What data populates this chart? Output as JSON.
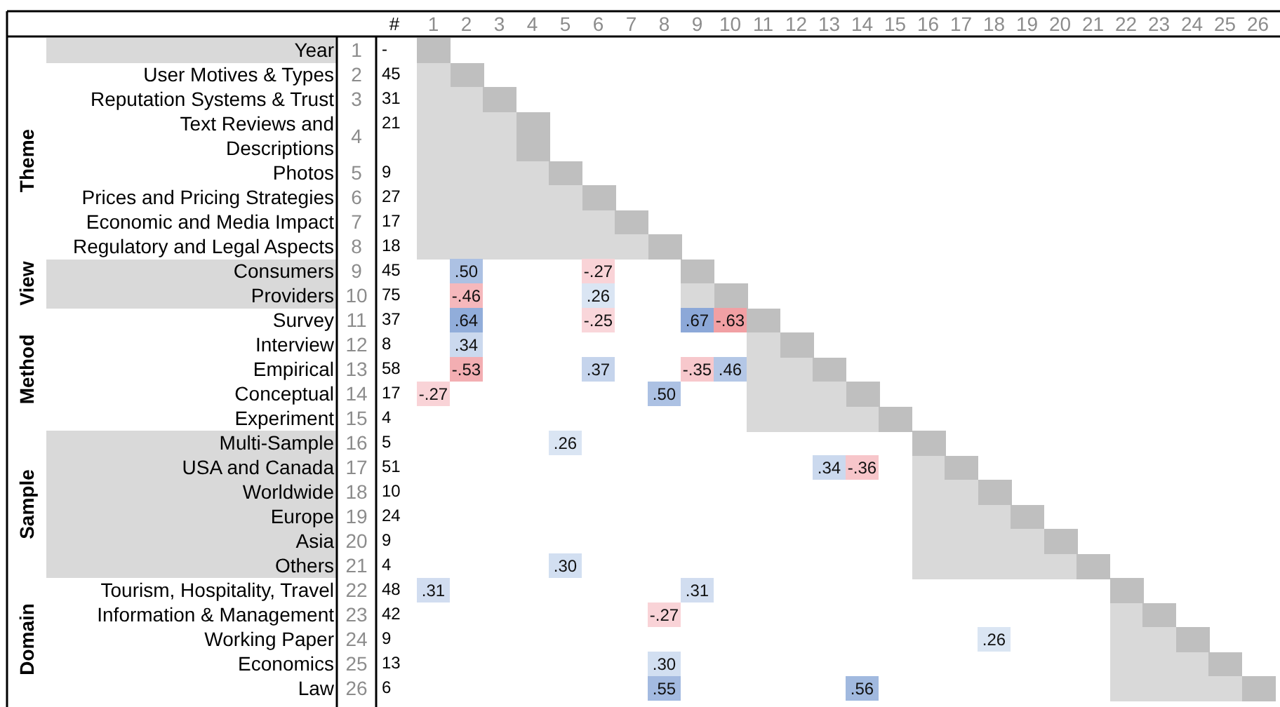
{
  "chart_data": {
    "type": "heatmap",
    "categories": [
      "1",
      "2",
      "3",
      "4",
      "5",
      "6",
      "7",
      "8",
      "9",
      "10",
      "11",
      "12",
      "13",
      "14",
      "15",
      "16",
      "17",
      "18",
      "19",
      "20",
      "21",
      "22",
      "23",
      "24",
      "25",
      "26"
    ],
    "y_categories": [
      "Year",
      "User Motives & Types",
      "Reputation Systems & Trust",
      "Text Reviews and Descriptions",
      "Photos",
      "Prices and Pricing Strategies",
      "Economic and Media Impact",
      "Regulatory and Legal Aspects",
      "Consumers",
      "Providers",
      "Survey",
      "Interview",
      "Empirical",
      "Conceptual",
      "Experiment",
      "Multi-Sample",
      "USA and Canada",
      "Worldwide",
      "Europe",
      "Asia",
      "Others",
      "Tourism, Hospitality, Travel",
      "Information & Management",
      "Working Paper",
      "Economics",
      "Law"
    ],
    "y2label": "#",
    "y2_categories": [
      "-",
      "45",
      "31",
      "21",
      "9",
      "27",
      "17",
      "18",
      "45",
      "75",
      "37",
      "8",
      "58",
      "17",
      "4",
      "5",
      "51",
      "10",
      "24",
      "9",
      "4",
      "48",
      "42",
      "9",
      "13",
      "6"
    ],
    "annotations": [
      "Theme",
      "View",
      "Method",
      "Sample",
      "Domain"
    ],
    "cells": [
      [
        null,
        null,
        null,
        null,
        null,
        null,
        null,
        null,
        null,
        null,
        null,
        null,
        null,
        null,
        null,
        null,
        null,
        null,
        null,
        null,
        null,
        null,
        null,
        null,
        null,
        null
      ],
      [
        null,
        null,
        null,
        null,
        null,
        null,
        null,
        null,
        null,
        null,
        null,
        null,
        null,
        null,
        null,
        null,
        null,
        null,
        null,
        null,
        null,
        null,
        null,
        null,
        null,
        null
      ],
      [
        null,
        null,
        null,
        null,
        null,
        null,
        null,
        null,
        null,
        null,
        null,
        null,
        null,
        null,
        null,
        null,
        null,
        null,
        null,
        null,
        null,
        null,
        null,
        null,
        null,
        null
      ],
      [
        null,
        null,
        null,
        null,
        null,
        null,
        null,
        null,
        null,
        null,
        null,
        null,
        null,
        null,
        null,
        null,
        null,
        null,
        null,
        null,
        null,
        null,
        null,
        null,
        null,
        null
      ],
      [
        null,
        null,
        null,
        null,
        null,
        null,
        null,
        null,
        null,
        null,
        null,
        null,
        null,
        null,
        null,
        null,
        null,
        null,
        null,
        null,
        null,
        null,
        null,
        null,
        null,
        null
      ],
      [
        null,
        null,
        null,
        null,
        null,
        null,
        null,
        null,
        null,
        null,
        null,
        null,
        null,
        null,
        null,
        null,
        null,
        null,
        null,
        null,
        null,
        null,
        null,
        null,
        null,
        null
      ],
      [
        null,
        null,
        null,
        null,
        null,
        null,
        null,
        null,
        null,
        null,
        null,
        null,
        null,
        null,
        null,
        null,
        null,
        null,
        null,
        null,
        null,
        null,
        null,
        null,
        null,
        null
      ],
      [
        null,
        null,
        null,
        null,
        null,
        null,
        null,
        null,
        null,
        null,
        null,
        null,
        null,
        null,
        null,
        null,
        null,
        null,
        null,
        null,
        null,
        null,
        null,
        null,
        null,
        null
      ],
      [
        null,
        0.5,
        null,
        null,
        null,
        -0.27,
        null,
        null,
        null,
        null,
        null,
        null,
        null,
        null,
        null,
        null,
        null,
        null,
        null,
        null,
        null,
        null,
        null,
        null,
        null,
        null
      ],
      [
        null,
        -0.46,
        null,
        null,
        null,
        0.26,
        null,
        null,
        null,
        null,
        null,
        null,
        null,
        null,
        null,
        null,
        null,
        null,
        null,
        null,
        null,
        null,
        null,
        null,
        null,
        null
      ],
      [
        null,
        0.64,
        null,
        null,
        null,
        -0.25,
        null,
        null,
        0.67,
        -0.63,
        null,
        null,
        null,
        null,
        null,
        null,
        null,
        null,
        null,
        null,
        null,
        null,
        null,
        null,
        null,
        null
      ],
      [
        null,
        0.34,
        null,
        null,
        null,
        null,
        null,
        null,
        null,
        null,
        null,
        null,
        null,
        null,
        null,
        null,
        null,
        null,
        null,
        null,
        null,
        null,
        null,
        null,
        null,
        null
      ],
      [
        null,
        -0.53,
        null,
        null,
        null,
        0.37,
        null,
        null,
        -0.35,
        0.46,
        null,
        null,
        null,
        null,
        null,
        null,
        null,
        null,
        null,
        null,
        null,
        null,
        null,
        null,
        null,
        null
      ],
      [
        -0.27,
        null,
        null,
        null,
        null,
        null,
        null,
        0.5,
        null,
        null,
        null,
        null,
        null,
        null,
        null,
        null,
        null,
        null,
        null,
        null,
        null,
        null,
        null,
        null,
        null,
        null
      ],
      [
        null,
        null,
        null,
        null,
        null,
        null,
        null,
        null,
        null,
        null,
        null,
        null,
        null,
        null,
        null,
        null,
        null,
        null,
        null,
        null,
        null,
        null,
        null,
        null,
        null,
        null
      ],
      [
        null,
        null,
        null,
        null,
        0.26,
        null,
        null,
        null,
        null,
        null,
        null,
        null,
        null,
        null,
        null,
        null,
        null,
        null,
        null,
        null,
        null,
        null,
        null,
        null,
        null,
        null
      ],
      [
        null,
        null,
        null,
        null,
        null,
        null,
        null,
        null,
        null,
        null,
        null,
        null,
        0.34,
        -0.36,
        null,
        null,
        null,
        null,
        null,
        null,
        null,
        null,
        null,
        null,
        null,
        null
      ],
      [
        null,
        null,
        null,
        null,
        null,
        null,
        null,
        null,
        null,
        null,
        null,
        null,
        null,
        null,
        null,
        null,
        null,
        null,
        null,
        null,
        null,
        null,
        null,
        null,
        null,
        null
      ],
      [
        null,
        null,
        null,
        null,
        null,
        null,
        null,
        null,
        null,
        null,
        null,
        null,
        null,
        null,
        null,
        null,
        null,
        null,
        null,
        null,
        null,
        null,
        null,
        null,
        null,
        null
      ],
      [
        null,
        null,
        null,
        null,
        null,
        null,
        null,
        null,
        null,
        null,
        null,
        null,
        null,
        null,
        null,
        null,
        null,
        null,
        null,
        null,
        null,
        null,
        null,
        null,
        null,
        null
      ],
      [
        null,
        null,
        null,
        null,
        0.3,
        null,
        null,
        null,
        null,
        null,
        null,
        null,
        null,
        null,
        null,
        null,
        null,
        null,
        null,
        null,
        null,
        null,
        null,
        null,
        null,
        null
      ],
      [
        0.31,
        null,
        null,
        null,
        null,
        null,
        null,
        null,
        0.31,
        null,
        null,
        null,
        null,
        null,
        null,
        null,
        null,
        null,
        null,
        null,
        null,
        null,
        null,
        null,
        null,
        null
      ],
      [
        null,
        null,
        null,
        null,
        null,
        null,
        null,
        -0.27,
        null,
        null,
        null,
        null,
        null,
        null,
        null,
        null,
        null,
        null,
        null,
        null,
        null,
        null,
        null,
        null,
        null,
        null
      ],
      [
        null,
        null,
        null,
        null,
        null,
        null,
        null,
        null,
        null,
        null,
        null,
        null,
        null,
        null,
        null,
        null,
        null,
        0.26,
        null,
        null,
        null,
        null,
        null,
        null,
        null,
        null
      ],
      [
        null,
        null,
        null,
        null,
        null,
        null,
        null,
        0.3,
        null,
        null,
        null,
        null,
        null,
        null,
        null,
        null,
        null,
        null,
        null,
        null,
        null,
        null,
        null,
        null,
        null,
        null
      ],
      [
        null,
        null,
        null,
        null,
        null,
        null,
        null,
        0.55,
        null,
        null,
        null,
        null,
        null,
        0.56,
        null,
        null,
        null,
        null,
        null,
        null,
        null,
        null,
        null,
        null,
        null,
        null
      ]
    ],
    "cell_labels": [
      [
        null,
        null,
        null,
        null,
        null,
        null,
        null,
        null,
        null,
        null,
        null,
        null,
        null,
        null,
        null,
        null,
        null,
        null,
        null,
        null,
        null,
        null,
        null,
        null,
        null,
        null
      ],
      [
        null,
        null,
        null,
        null,
        null,
        null,
        null,
        null,
        null,
        null,
        null,
        null,
        null,
        null,
        null,
        null,
        null,
        null,
        null,
        null,
        null,
        null,
        null,
        null,
        null,
        null
      ],
      [
        null,
        null,
        null,
        null,
        null,
        null,
        null,
        null,
        null,
        null,
        null,
        null,
        null,
        null,
        null,
        null,
        null,
        null,
        null,
        null,
        null,
        null,
        null,
        null,
        null,
        null
      ],
      [
        null,
        null,
        null,
        null,
        null,
        null,
        null,
        null,
        null,
        null,
        null,
        null,
        null,
        null,
        null,
        null,
        null,
        null,
        null,
        null,
        null,
        null,
        null,
        null,
        null,
        null
      ],
      [
        null,
        null,
        null,
        null,
        null,
        null,
        null,
        null,
        null,
        null,
        null,
        null,
        null,
        null,
        null,
        null,
        null,
        null,
        null,
        null,
        null,
        null,
        null,
        null,
        null,
        null
      ],
      [
        null,
        null,
        null,
        null,
        null,
        null,
        null,
        null,
        null,
        null,
        null,
        null,
        null,
        null,
        null,
        null,
        null,
        null,
        null,
        null,
        null,
        null,
        null,
        null,
        null,
        null
      ],
      [
        null,
        null,
        null,
        null,
        null,
        null,
        null,
        null,
        null,
        null,
        null,
        null,
        null,
        null,
        null,
        null,
        null,
        null,
        null,
        null,
        null,
        null,
        null,
        null,
        null,
        null
      ],
      [
        null,
        null,
        null,
        null,
        null,
        null,
        null,
        null,
        null,
        null,
        null,
        null,
        null,
        null,
        null,
        null,
        null,
        null,
        null,
        null,
        null,
        null,
        null,
        null,
        null,
        null
      ],
      [
        null,
        ".50",
        null,
        null,
        null,
        "-.27",
        null,
        null,
        null,
        null,
        null,
        null,
        null,
        null,
        null,
        null,
        null,
        null,
        null,
        null,
        null,
        null,
        null,
        null,
        null,
        null
      ],
      [
        null,
        "-.46",
        null,
        null,
        null,
        ".26",
        null,
        null,
        null,
        null,
        null,
        null,
        null,
        null,
        null,
        null,
        null,
        null,
        null,
        null,
        null,
        null,
        null,
        null,
        null,
        null
      ],
      [
        null,
        ".64",
        null,
        null,
        null,
        "-.25",
        null,
        null,
        ".67",
        "-.63",
        null,
        null,
        null,
        null,
        null,
        null,
        null,
        null,
        null,
        null,
        null,
        null,
        null,
        null,
        null,
        null
      ],
      [
        null,
        ".34",
        null,
        null,
        null,
        null,
        null,
        null,
        null,
        null,
        null,
        null,
        null,
        null,
        null,
        null,
        null,
        null,
        null,
        null,
        null,
        null,
        null,
        null,
        null,
        null
      ],
      [
        null,
        "-.53",
        null,
        null,
        null,
        ".37",
        null,
        null,
        "-.35",
        ".46",
        null,
        null,
        null,
        null,
        null,
        null,
        null,
        null,
        null,
        null,
        null,
        null,
        null,
        null,
        null,
        null
      ],
      [
        "-.27",
        null,
        null,
        null,
        null,
        null,
        null,
        ".50",
        null,
        null,
        null,
        null,
        null,
        null,
        null,
        null,
        null,
        null,
        null,
        null,
        null,
        null,
        null,
        null,
        null,
        null
      ],
      [
        null,
        null,
        null,
        null,
        null,
        null,
        null,
        null,
        null,
        null,
        null,
        null,
        null,
        null,
        null,
        null,
        null,
        null,
        null,
        null,
        null,
        null,
        null,
        null,
        null,
        null
      ],
      [
        null,
        null,
        null,
        null,
        ".26",
        null,
        null,
        null,
        null,
        null,
        null,
        null,
        null,
        null,
        null,
        null,
        null,
        null,
        null,
        null,
        null,
        null,
        null,
        null,
        null,
        null
      ],
      [
        null,
        null,
        null,
        null,
        null,
        null,
        null,
        null,
        null,
        null,
        null,
        null,
        ".34",
        "-.36",
        null,
        null,
        null,
        null,
        null,
        null,
        null,
        null,
        null,
        null,
        null,
        null
      ],
      [
        null,
        null,
        null,
        null,
        null,
        null,
        null,
        null,
        null,
        null,
        null,
        null,
        null,
        null,
        null,
        null,
        null,
        null,
        null,
        null,
        null,
        null,
        null,
        null,
        null,
        null
      ],
      [
        null,
        null,
        null,
        null,
        null,
        null,
        null,
        null,
        null,
        null,
        null,
        null,
        null,
        null,
        null,
        null,
        null,
        null,
        null,
        null,
        null,
        null,
        null,
        null,
        null,
        null
      ],
      [
        null,
        null,
        null,
        null,
        null,
        null,
        null,
        null,
        null,
        null,
        null,
        null,
        null,
        null,
        null,
        null,
        null,
        null,
        null,
        null,
        null,
        null,
        null,
        null,
        null,
        null
      ],
      [
        null,
        null,
        null,
        null,
        ".30",
        null,
        null,
        null,
        null,
        null,
        null,
        null,
        null,
        null,
        null,
        null,
        null,
        null,
        null,
        null,
        null,
        null,
        null,
        null,
        null,
        null
      ],
      [
        ".31",
        null,
        null,
        null,
        null,
        null,
        null,
        null,
        ".31",
        null,
        null,
        null,
        null,
        null,
        null,
        null,
        null,
        null,
        null,
        null,
        null,
        null,
        null,
        null,
        null,
        null
      ],
      [
        null,
        null,
        null,
        null,
        null,
        null,
        null,
        "-.27",
        null,
        null,
        null,
        null,
        null,
        null,
        null,
        null,
        null,
        null,
        null,
        null,
        null,
        null,
        null,
        null,
        null,
        null
      ],
      [
        null,
        null,
        null,
        null,
        null,
        null,
        null,
        null,
        null,
        null,
        null,
        null,
        null,
        null,
        null,
        null,
        null,
        ".26",
        null,
        null,
        null,
        null,
        null,
        null,
        null,
        null
      ],
      [
        null,
        null,
        null,
        null,
        null,
        null,
        null,
        ".30",
        null,
        null,
        null,
        null,
        null,
        null,
        null,
        null,
        null,
        null,
        null,
        null,
        null,
        null,
        null,
        null,
        null,
        null
      ],
      [
        null,
        null,
        null,
        null,
        null,
        null,
        null,
        ".55",
        null,
        null,
        null,
        null,
        null,
        ".56",
        null,
        null,
        null,
        null,
        null,
        null,
        null,
        null,
        null,
        null,
        null,
        null
      ]
    ]
  }
}
